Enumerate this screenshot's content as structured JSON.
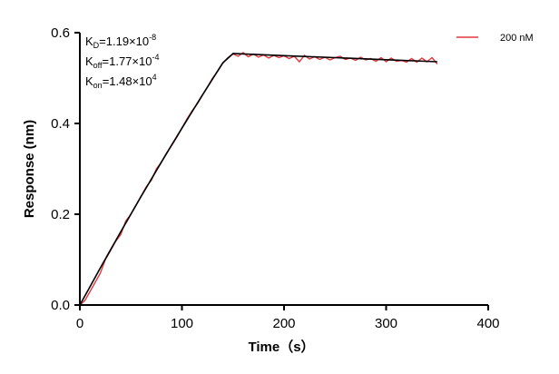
{
  "chart_data": {
    "type": "line",
    "xlabel": "Time（s）",
    "ylabel": "Response (nm)",
    "xlim": [
      0,
      400
    ],
    "ylim": [
      0,
      0.6
    ],
    "xticks": [
      "0",
      "100",
      "200",
      "300",
      "400"
    ],
    "yticks": [
      "0.0",
      "0.2",
      "0.4",
      "0.6"
    ],
    "grid": false,
    "legend": "top-right",
    "annotations": {
      "kd": {
        "base": "K",
        "sub": "D",
        "text": "=1.19×10",
        "exp": "-8"
      },
      "koff": {
        "base": "K",
        "sub": "off",
        "text": "=1.77×10",
        "exp": "-4"
      },
      "kon": {
        "base": "K",
        "sub": "on",
        "text": "=1.48×10",
        "exp": "4"
      }
    },
    "series": [
      {
        "name": "200 nM",
        "color": "#e0393e",
        "x": [
          0,
          5,
          10,
          15,
          20,
          25,
          30,
          35,
          40,
          45,
          50,
          55,
          60,
          65,
          70,
          75,
          80,
          85,
          90,
          95,
          100,
          105,
          110,
          115,
          120,
          125,
          130,
          135,
          140,
          145,
          150,
          155,
          160,
          165,
          170,
          175,
          180,
          185,
          190,
          195,
          200,
          205,
          210,
          215,
          220,
          225,
          230,
          235,
          240,
          245,
          250,
          255,
          260,
          265,
          270,
          275,
          280,
          285,
          290,
          295,
          300,
          305,
          310,
          315,
          320,
          325,
          330,
          335,
          340,
          345,
          350
        ],
        "y": [
          0.0,
          0.01,
          0.03,
          0.05,
          0.07,
          0.1,
          0.12,
          0.14,
          0.155,
          0.185,
          0.2,
          0.22,
          0.24,
          0.26,
          0.275,
          0.3,
          0.315,
          0.335,
          0.352,
          0.37,
          0.39,
          0.41,
          0.428,
          0.443,
          0.462,
          0.48,
          0.5,
          0.515,
          0.533,
          0.545,
          0.553,
          0.548,
          0.556,
          0.547,
          0.553,
          0.546,
          0.551,
          0.544,
          0.55,
          0.545,
          0.549,
          0.543,
          0.548,
          0.536,
          0.55,
          0.542,
          0.547,
          0.541,
          0.546,
          0.54,
          0.545,
          0.548,
          0.541,
          0.544,
          0.539,
          0.546,
          0.54,
          0.543,
          0.537,
          0.545,
          0.536,
          0.544,
          0.537,
          0.539,
          0.535,
          0.543,
          0.535,
          0.544,
          0.536,
          0.545,
          0.531
        ]
      },
      {
        "color": "#000000",
        "x": [
          0,
          10,
          20,
          30,
          40,
          50,
          60,
          70,
          80,
          90,
          100,
          110,
          120,
          130,
          140,
          150,
          200,
          250,
          300,
          350
        ],
        "y": [
          0,
          0.0409,
          0.0815,
          0.1216,
          0.1612,
          0.2004,
          0.2391,
          0.2774,
          0.3153,
          0.3527,
          0.3897,
          0.4263,
          0.4624,
          0.4981,
          0.5334,
          0.554,
          0.5495,
          0.545,
          0.5405,
          0.536
        ]
      }
    ]
  }
}
